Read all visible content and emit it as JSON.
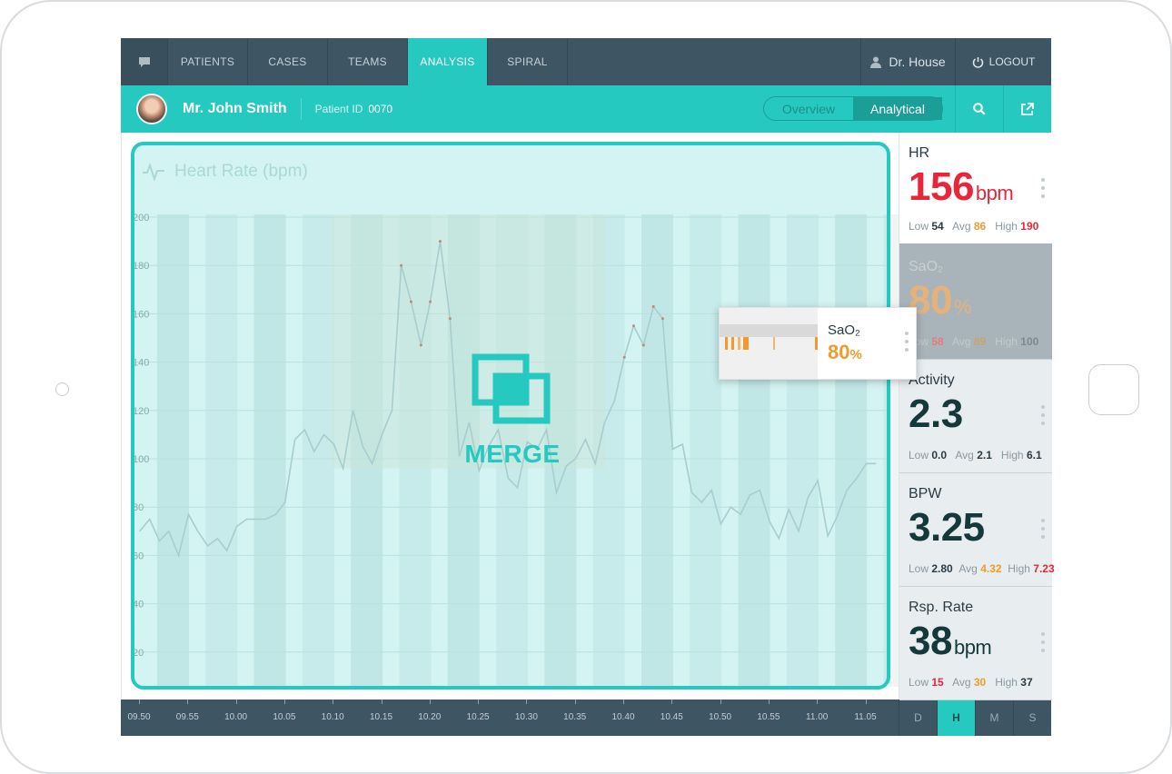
{
  "nav": {
    "tabs": [
      {
        "label": "PATIENTS"
      },
      {
        "label": "CASES"
      },
      {
        "label": "TEAMS"
      },
      {
        "label": "ANALYSIS",
        "active": true
      },
      {
        "label": "SPIRAL"
      }
    ],
    "user": "Dr. House",
    "logout": "LOGOUT"
  },
  "patient": {
    "name": "Mr. John Smith",
    "id_label": "Patient ID",
    "id_value": "0070",
    "view_toggle": {
      "overview": "Overview",
      "analytical": "Analytical",
      "selected": "Analytical"
    }
  },
  "chart": {
    "title": "Heart Rate (bpm)",
    "merge_label": "MERGE"
  },
  "chart_data": {
    "type": "line",
    "title": "Heart Rate (bpm)",
    "ylim": [
      0,
      200
    ],
    "y_ticks": [
      20,
      40,
      60,
      80,
      100,
      120,
      140,
      160,
      180,
      200
    ],
    "x_ticks": [
      "09.50",
      "09.55",
      "10.00",
      "10.05",
      "10.10",
      "10.15",
      "10.20",
      "10.25",
      "10.30",
      "10.35",
      "10.40",
      "10.45",
      "10.50",
      "10.55",
      "11.00",
      "11.05"
    ],
    "series": [
      {
        "x": [
          9.833,
          9.85,
          9.867,
          9.883,
          9.9,
          9.917,
          9.933,
          9.95,
          9.967,
          9.983,
          10.0,
          10.017,
          10.033,
          10.05,
          10.067,
          10.083,
          10.1,
          10.117,
          10.133,
          10.15,
          10.167,
          10.183,
          10.2,
          10.217,
          10.233,
          10.25,
          10.267,
          10.283,
          10.3,
          10.317,
          10.333,
          10.35,
          10.367,
          10.383,
          10.4,
          10.417,
          10.433,
          10.45,
          10.467,
          10.483,
          10.5,
          10.517,
          10.533,
          10.55,
          10.567,
          10.583,
          10.6,
          10.617,
          10.633,
          10.65,
          10.667,
          10.683,
          10.7,
          10.717,
          10.733,
          10.75,
          10.767,
          10.783,
          10.8,
          10.817,
          10.833,
          10.85,
          10.867,
          10.883,
          10.9,
          10.917,
          10.933,
          10.95,
          10.967,
          10.983,
          11.0,
          11.017,
          11.033,
          11.05,
          11.067,
          11.083,
          11.1
        ],
        "values": [
          70,
          75,
          66,
          70,
          60,
          77,
          70,
          64,
          67,
          62,
          72,
          75,
          75,
          75,
          77,
          82,
          108,
          112,
          103,
          110,
          106,
          96,
          120,
          105,
          98,
          110,
          120,
          180,
          165,
          147,
          165,
          190,
          158,
          101,
          115,
          95,
          105,
          112,
          92,
          88,
          107,
          104,
          112,
          86,
          97,
          100,
          108,
          98,
          115,
          124,
          142,
          155,
          147,
          163,
          158,
          104,
          106,
          86,
          82,
          87,
          73,
          80,
          77,
          85,
          87,
          74,
          67,
          79,
          70,
          84,
          91,
          68,
          76,
          87,
          92,
          98,
          98
        ],
        "color": "#e87a6c"
      }
    ]
  },
  "timeline": {
    "labels": [
      "09.50",
      "09.55",
      "10.00",
      "10.05",
      "10.10",
      "10.15",
      "10.20",
      "10.25",
      "10.30",
      "10.35",
      "10.40",
      "10.45",
      "10.50",
      "10.55",
      "11.00",
      "11.05"
    ],
    "ranges": [
      {
        "label": "D"
      },
      {
        "label": "H",
        "active": true
      },
      {
        "label": "M"
      },
      {
        "label": "S"
      }
    ]
  },
  "vitals": [
    {
      "label": "HR",
      "value": "156",
      "unit": "bpm",
      "value_color": "#e8263a",
      "low_label": "Low",
      "low": "54",
      "avg_label": "Avg",
      "avg": "86",
      "high_label": "High",
      "high": "190",
      "low_color": "#2b3b44",
      "avg_color": "#f39a2c",
      "high_color": "#e8263a"
    },
    {
      "label": "SaO₂",
      "value": "80",
      "unit": "%",
      "value_color": "#e9b46a",
      "low_label": "Low",
      "low": "58",
      "avg_label": "Avg",
      "avg": "89",
      "high_label": "High",
      "high": "100",
      "low_color": "#e86a6a",
      "avg_color": "#c9a36a",
      "high_color": "#7e8a90"
    },
    {
      "label": "Activity",
      "value": "2.3",
      "unit": "",
      "value_color": "#15383b",
      "low_label": "Low",
      "low": "0.0",
      "avg_label": "Avg",
      "avg": "2.1",
      "high_label": "High",
      "high": "6.1",
      "low_color": "#2b3b44",
      "avg_color": "#2b3b44",
      "high_color": "#2b3b44"
    },
    {
      "label": "BPW",
      "value": "3.25",
      "unit": "",
      "value_color": "#15383b",
      "low_label": "Low",
      "low": "2.80",
      "avg_label": "Avg",
      "avg": "4.32",
      "high_label": "High",
      "high": "7.23",
      "low_color": "#2b3b44",
      "avg_color": "#f39a2c",
      "high_color": "#e8263a"
    },
    {
      "label": "Rsp. Rate",
      "value": "38",
      "unit": "bpm",
      "value_color": "#15383b",
      "low_label": "Low",
      "low": "15",
      "avg_label": "Avg",
      "avg": "30",
      "high_label": "High",
      "high": "37",
      "low_color": "#e8263a",
      "avg_color": "#f39a2c",
      "high_color": "#2b3b44"
    }
  ],
  "floating_card": {
    "label": "SaO₂",
    "value": "80",
    "unit": "%"
  },
  "colors": {
    "accent": "#25c9c0",
    "nav_bg": "#3e5563",
    "alert": "#e8263a",
    "warning": "#f39a2c"
  },
  "icons": [
    "chat-icon",
    "user-icon",
    "power-icon",
    "search-icon",
    "external-link-icon",
    "heartbeat-icon",
    "merge-icon",
    "more-vertical-icon"
  ]
}
